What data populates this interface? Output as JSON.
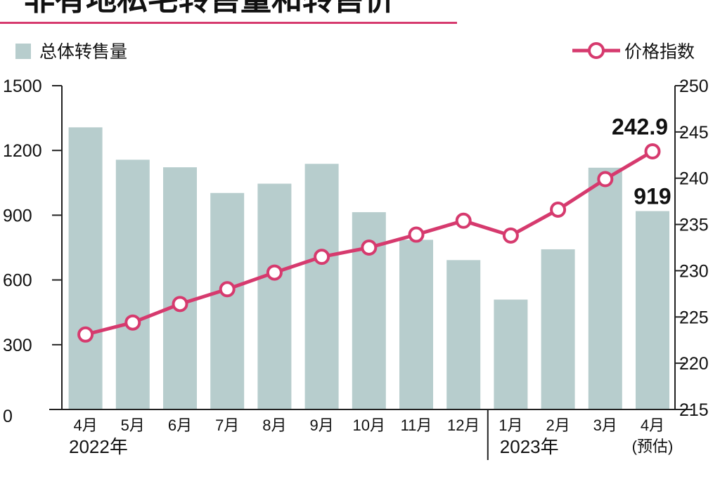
{
  "title": "非有地私宅转售量和转售价",
  "colors": {
    "bar": "#b7cdcd",
    "line": "#d63a6e",
    "axis": "#222222",
    "title_underline": "#d63a6e"
  },
  "legend": {
    "bar_label": "总体转售量",
    "line_label": "价格指数"
  },
  "chart_data": {
    "type": "bar",
    "categories": [
      "4月",
      "5月",
      "6月",
      "7月",
      "8月",
      "9月",
      "10月",
      "11月",
      "12月",
      "1月",
      "2月",
      "3月",
      "4月"
    ],
    "year_groups": [
      {
        "label": "2022年",
        "count": 9
      },
      {
        "label": "2023年",
        "count": 4
      }
    ],
    "estimate_note": "(预估)",
    "series": [
      {
        "name": "总体转售量",
        "type": "bar",
        "axis": "left",
        "values": [
          1307,
          1157,
          1122,
          1003,
          1046,
          1138,
          914,
          786,
          692,
          509,
          742,
          1120,
          919
        ]
      },
      {
        "name": "价格指数",
        "type": "line",
        "axis": "right",
        "values": [
          223.1,
          224.4,
          226.4,
          228.0,
          229.8,
          231.5,
          232.5,
          233.9,
          235.4,
          233.8,
          236.6,
          239.9,
          242.9
        ]
      }
    ],
    "y_left": {
      "ticks": [
        0,
        300,
        600,
        900,
        1200,
        1500
      ],
      "ylim": [
        0,
        1500
      ]
    },
    "y_right": {
      "ticks": [
        215,
        220,
        225,
        230,
        235,
        240,
        245,
        250
      ],
      "ylim": [
        215,
        250
      ]
    },
    "annotations": [
      {
        "series": "价格指数",
        "index": 12,
        "text": "242.9"
      },
      {
        "series": "总体转售量",
        "index": 12,
        "text": "919"
      }
    ],
    "legend_placement": "top",
    "grid": false
  }
}
